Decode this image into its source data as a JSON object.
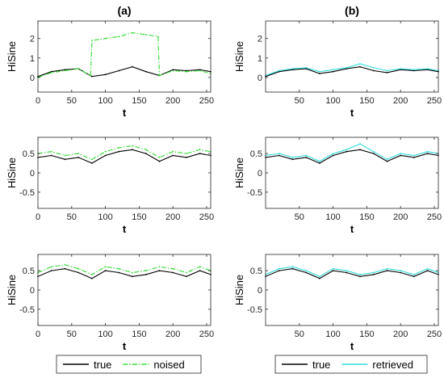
{
  "chart_data": [
    {
      "panel": "left-top",
      "type": "line",
      "title": "(a)",
      "xlabel": "t",
      "ylabel": "HiSine",
      "xlim": [
        0,
        256
      ],
      "ylim": [
        -0.75,
        2.9
      ],
      "xticks": [
        0,
        50,
        100,
        150,
        200,
        250
      ],
      "yticks": [
        0,
        1,
        2
      ],
      "series": [
        {
          "name": "true",
          "color": "#000000",
          "style": "solid",
          "x": [
            0,
            20,
            40,
            60,
            80,
            100,
            120,
            140,
            160,
            180,
            200,
            220,
            240,
            256
          ],
          "y": [
            0.05,
            0.3,
            0.4,
            0.45,
            0.05,
            0.15,
            0.35,
            0.55,
            0.3,
            0.1,
            0.4,
            0.35,
            0.4,
            0.3
          ]
        },
        {
          "name": "noised",
          "color": "#33dd33",
          "style": "dashdot",
          "x": [
            0,
            20,
            40,
            60,
            78,
            80,
            100,
            120,
            140,
            160,
            178,
            180,
            200,
            220,
            240,
            256
          ],
          "y": [
            0.0,
            0.25,
            0.35,
            0.45,
            0.1,
            1.9,
            2.0,
            2.1,
            2.3,
            2.2,
            2.1,
            0.1,
            0.35,
            0.3,
            0.35,
            0.2
          ]
        }
      ]
    },
    {
      "panel": "right-top",
      "type": "line",
      "title": "(b)",
      "xlabel": "t",
      "ylabel": "HiSine",
      "xlim": [
        0,
        256
      ],
      "ylim": [
        -0.75,
        2.9
      ],
      "xticks": [
        50,
        100,
        150,
        200,
        250
      ],
      "yticks": [
        0,
        1,
        2
      ],
      "series": [
        {
          "name": "true",
          "color": "#000000",
          "style": "solid",
          "x": [
            0,
            20,
            40,
            60,
            80,
            100,
            120,
            140,
            160,
            180,
            200,
            220,
            240,
            256
          ],
          "y": [
            0.05,
            0.3,
            0.4,
            0.45,
            0.2,
            0.3,
            0.45,
            0.55,
            0.35,
            0.25,
            0.4,
            0.35,
            0.4,
            0.3
          ]
        },
        {
          "name": "retrieved",
          "color": "#33dddd",
          "style": "solid",
          "x": [
            0,
            20,
            40,
            60,
            80,
            100,
            120,
            140,
            160,
            180,
            200,
            220,
            240,
            256
          ],
          "y": [
            0.1,
            0.35,
            0.45,
            0.5,
            0.3,
            0.4,
            0.5,
            0.7,
            0.5,
            0.35,
            0.45,
            0.4,
            0.45,
            0.35
          ]
        }
      ]
    },
    {
      "panel": "left-middle",
      "type": "line",
      "xlabel": "t",
      "ylabel": "HiSine",
      "xlim": [
        0,
        256
      ],
      "ylim": [
        -0.92,
        0.92
      ],
      "xticks": [
        0,
        50,
        100,
        150,
        200,
        250
      ],
      "yticks": [
        -0.5,
        0,
        0.5
      ],
      "series": [
        {
          "name": "true",
          "color": "#000000",
          "style": "solid",
          "x": [
            0,
            20,
            40,
            60,
            80,
            100,
            120,
            140,
            160,
            180,
            200,
            220,
            240,
            256
          ],
          "y": [
            0.4,
            0.45,
            0.35,
            0.4,
            0.25,
            0.45,
            0.55,
            0.6,
            0.5,
            0.3,
            0.45,
            0.4,
            0.5,
            0.45
          ]
        },
        {
          "name": "noised",
          "color": "#33dd33",
          "style": "dashdot",
          "x": [
            0,
            20,
            40,
            60,
            80,
            100,
            120,
            140,
            160,
            180,
            200,
            220,
            240,
            256
          ],
          "y": [
            0.5,
            0.55,
            0.45,
            0.5,
            0.35,
            0.55,
            0.65,
            0.7,
            0.6,
            0.4,
            0.55,
            0.5,
            0.6,
            0.55
          ]
        }
      ]
    },
    {
      "panel": "right-middle",
      "type": "line",
      "xlabel": "t",
      "ylabel": "HiSine",
      "xlim": [
        0,
        256
      ],
      "ylim": [
        -0.92,
        0.92
      ],
      "xticks": [
        50,
        100,
        150,
        200,
        250
      ],
      "yticks": [
        -0.5,
        0,
        0.5
      ],
      "series": [
        {
          "name": "true",
          "color": "#000000",
          "style": "solid",
          "x": [
            0,
            20,
            40,
            60,
            80,
            100,
            120,
            140,
            160,
            180,
            200,
            220,
            240,
            256
          ],
          "y": [
            0.4,
            0.45,
            0.35,
            0.4,
            0.25,
            0.45,
            0.55,
            0.6,
            0.5,
            0.3,
            0.45,
            0.4,
            0.5,
            0.45
          ]
        },
        {
          "name": "retrieved",
          "color": "#33dddd",
          "style": "solid",
          "x": [
            0,
            20,
            40,
            60,
            80,
            100,
            120,
            140,
            160,
            180,
            200,
            220,
            240,
            256
          ],
          "y": [
            0.45,
            0.5,
            0.4,
            0.45,
            0.3,
            0.5,
            0.6,
            0.75,
            0.55,
            0.35,
            0.5,
            0.45,
            0.55,
            0.5
          ]
        }
      ]
    },
    {
      "panel": "left-bottom",
      "type": "line",
      "xlabel": "t",
      "ylabel": "HiSine",
      "xlim": [
        0,
        256
      ],
      "ylim": [
        -0.92,
        0.92
      ],
      "xticks": [
        0,
        50,
        100,
        150,
        200,
        250
      ],
      "yticks": [
        -0.5,
        0,
        0.5
      ],
      "series": [
        {
          "name": "true",
          "color": "#000000",
          "style": "solid",
          "x": [
            0,
            20,
            40,
            60,
            80,
            100,
            120,
            140,
            160,
            180,
            200,
            220,
            240,
            256
          ],
          "y": [
            0.35,
            0.5,
            0.55,
            0.45,
            0.3,
            0.5,
            0.45,
            0.35,
            0.4,
            0.5,
            0.45,
            0.35,
            0.5,
            0.4
          ]
        },
        {
          "name": "noised",
          "color": "#33dd33",
          "style": "dashdot",
          "x": [
            0,
            20,
            40,
            60,
            80,
            100,
            120,
            140,
            160,
            180,
            200,
            220,
            240,
            256
          ],
          "y": [
            0.45,
            0.6,
            0.65,
            0.55,
            0.4,
            0.6,
            0.55,
            0.45,
            0.5,
            0.6,
            0.55,
            0.45,
            0.6,
            0.5
          ]
        }
      ]
    },
    {
      "panel": "right-bottom",
      "type": "line",
      "xlabel": "t",
      "ylabel": "HiSine",
      "xlim": [
        0,
        256
      ],
      "ylim": [
        -0.92,
        0.92
      ],
      "xticks": [
        50,
        100,
        150,
        200,
        250
      ],
      "yticks": [
        -0.5,
        0,
        0.5
      ],
      "series": [
        {
          "name": "true",
          "color": "#000000",
          "style": "solid",
          "x": [
            0,
            20,
            40,
            60,
            80,
            100,
            120,
            140,
            160,
            180,
            200,
            220,
            240,
            256
          ],
          "y": [
            0.35,
            0.5,
            0.55,
            0.45,
            0.3,
            0.5,
            0.45,
            0.35,
            0.4,
            0.5,
            0.45,
            0.35,
            0.5,
            0.4
          ]
        },
        {
          "name": "retrieved",
          "color": "#33dddd",
          "style": "solid",
          "x": [
            0,
            20,
            40,
            60,
            80,
            100,
            120,
            140,
            160,
            180,
            200,
            220,
            240,
            256
          ],
          "y": [
            0.4,
            0.55,
            0.6,
            0.5,
            0.35,
            0.55,
            0.5,
            0.4,
            0.45,
            0.55,
            0.5,
            0.4,
            0.55,
            0.45
          ]
        }
      ]
    }
  ],
  "legends": [
    {
      "column": "left",
      "entries": [
        {
          "label": "true",
          "color": "#000000",
          "style": "solid"
        },
        {
          "label": "noised",
          "color": "#33dd33",
          "style": "dashdot"
        }
      ]
    },
    {
      "column": "right",
      "entries": [
        {
          "label": "true",
          "color": "#000000",
          "style": "solid"
        },
        {
          "label": "retrieved",
          "color": "#33dddd",
          "style": "solid"
        }
      ]
    }
  ]
}
